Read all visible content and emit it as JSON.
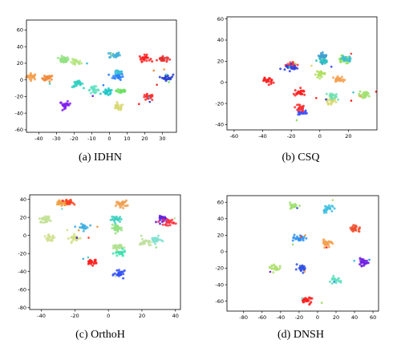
{
  "chart_data": [
    {
      "type": "scatter",
      "caption": "(a) IDHN",
      "xlim": [
        -47,
        38
      ],
      "ylim": [
        -63,
        72
      ],
      "xticks": [
        -40,
        -30,
        -20,
        -10,
        0,
        10,
        20,
        30
      ],
      "yticks": [
        -60,
        -40,
        -20,
        0,
        20,
        40,
        60
      ],
      "clusters": [
        {
          "x": -44,
          "y": 4,
          "color": "#f6a04d"
        },
        {
          "x": -35,
          "y": 2,
          "color": "#ef8a3a"
        },
        {
          "x": -26,
          "y": 24,
          "color": "#90e080"
        },
        {
          "x": -19,
          "y": 21,
          "color": "#b5e580"
        },
        {
          "x": 3,
          "y": 30,
          "color": "#3fb0d8"
        },
        {
          "x": 5,
          "y": 9,
          "color": "#3bc0d8"
        },
        {
          "x": 5,
          "y": 4,
          "color": "#2e80ff"
        },
        {
          "x": 20,
          "y": 26,
          "color": "#ff2020"
        },
        {
          "x": 30,
          "y": 25,
          "color": "#e83030"
        },
        {
          "x": 33,
          "y": 3,
          "color": "#2a40d0"
        },
        {
          "x": -25,
          "y": -30,
          "color": "#8020f0"
        },
        {
          "x": -9,
          "y": -12,
          "color": "#60e0c0"
        },
        {
          "x": -18,
          "y": -5,
          "color": "#30d0c0"
        },
        {
          "x": 7,
          "y": -13,
          "color": "#6ae060"
        },
        {
          "x": 5,
          "y": -33,
          "color": "#d8d870"
        },
        {
          "x": 22,
          "y": -21,
          "color": "#ff3030"
        },
        {
          "x": -1,
          "y": -15,
          "color": "#20c8c8"
        }
      ]
    },
    {
      "type": "scatter",
      "caption": "(b) CSQ",
      "xlim": [
        -65,
        40
      ],
      "ylim": [
        -45,
        62
      ],
      "xticks": [
        -60,
        -40,
        -20,
        0,
        20
      ],
      "yticks": [
        -40,
        -20,
        0,
        20,
        40,
        60
      ],
      "clusters": [
        {
          "x": -36,
          "y": 2,
          "color": "#ff2020"
        },
        {
          "x": -20,
          "y": 17,
          "color": "#ff4040"
        },
        {
          "x": -20,
          "y": 14,
          "color": "#3040e0"
        },
        {
          "x": -14,
          "y": -10,
          "color": "#ff2020"
        },
        {
          "x": -13,
          "y": -29,
          "color": "#4050ff"
        },
        {
          "x": -14,
          "y": -24,
          "color": "#ff3030"
        },
        {
          "x": 2,
          "y": 25,
          "color": "#40a0d0"
        },
        {
          "x": 3,
          "y": 20,
          "color": "#30c0c0"
        },
        {
          "x": 0,
          "y": 8,
          "color": "#b0e060"
        },
        {
          "x": 17,
          "y": 22,
          "color": "#90e060"
        },
        {
          "x": 19,
          "y": 22,
          "color": "#40c0d0"
        },
        {
          "x": 13,
          "y": 2,
          "color": "#f6a04d"
        },
        {
          "x": 31,
          "y": -12,
          "color": "#a0e070"
        },
        {
          "x": 8,
          "y": -18,
          "color": "#d8d870"
        },
        {
          "x": 9,
          "y": -13,
          "color": "#70e0b0"
        }
      ]
    },
    {
      "type": "scatter",
      "caption": "(c) OrthoH",
      "xlim": [
        -47,
        43
      ],
      "ylim": [
        -82,
        45
      ],
      "xticks": [
        -40,
        -20,
        0,
        20,
        40
      ],
      "yticks": [
        -80,
        -60,
        -40,
        -20,
        0,
        20,
        40
      ],
      "clusters": [
        {
          "x": -24,
          "y": 36,
          "color": "#ff4020"
        },
        {
          "x": -28,
          "y": 36,
          "color": "#f0a040"
        },
        {
          "x": 8,
          "y": 35,
          "color": "#f0a050"
        },
        {
          "x": -38,
          "y": 18,
          "color": "#c0e090"
        },
        {
          "x": -15,
          "y": 9,
          "color": "#3fb0e0"
        },
        {
          "x": 5,
          "y": 8,
          "color": "#90e080"
        },
        {
          "x": 5,
          "y": 18,
          "color": "#40d0c0"
        },
        {
          "x": 33,
          "y": 18,
          "color": "#6020e0"
        },
        {
          "x": 36,
          "y": 15,
          "color": "#ff3040"
        },
        {
          "x": -35,
          "y": -3,
          "color": "#d0e090"
        },
        {
          "x": -20,
          "y": -3,
          "color": "#d0e080"
        },
        {
          "x": 5,
          "y": -13,
          "color": "#b0e090"
        },
        {
          "x": 22,
          "y": -8,
          "color": "#c0e0a0"
        },
        {
          "x": 28,
          "y": -5,
          "color": "#80e0d0"
        },
        {
          "x": -10,
          "y": -29,
          "color": "#ff2020"
        },
        {
          "x": 7,
          "y": -43,
          "color": "#3050ff"
        },
        {
          "x": 7,
          "y": -20,
          "color": "#40e0b0"
        }
      ]
    },
    {
      "type": "scatter",
      "caption": "(d) DNSH",
      "xlim": [
        -98,
        66
      ],
      "ylim": [
        -72,
        68
      ],
      "xticks": [
        -80,
        -60,
        -40,
        -20,
        0,
        20,
        40,
        60
      ],
      "yticks": [
        -60,
        -40,
        -20,
        0,
        20,
        40,
        60
      ],
      "clusters": [
        {
          "x": -27,
          "y": 55,
          "color": "#a0e070"
        },
        {
          "x": 11,
          "y": 52,
          "color": "#40c0e0"
        },
        {
          "x": -20,
          "y": 16,
          "color": "#3090f0"
        },
        {
          "x": 11,
          "y": 11,
          "color": "#f6a04d"
        },
        {
          "x": 41,
          "y": 28,
          "color": "#f05030"
        },
        {
          "x": -45,
          "y": -20,
          "color": "#b0e070"
        },
        {
          "x": -18,
          "y": -21,
          "color": "#3050e0"
        },
        {
          "x": 19,
          "y": -35,
          "color": "#60e0c0"
        },
        {
          "x": 49,
          "y": -13,
          "color": "#7020e0"
        },
        {
          "x": -12,
          "y": -59,
          "color": "#ff2020"
        }
      ]
    }
  ]
}
